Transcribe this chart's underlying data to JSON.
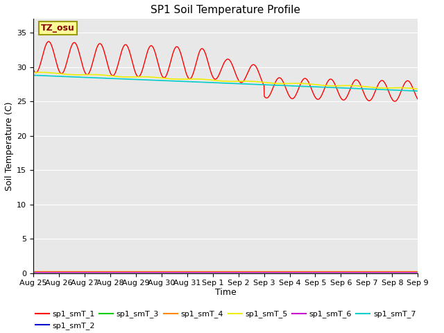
{
  "title": "SP1 Soil Temperature Profile",
  "xlabel": "Time",
  "ylabel": "Soil Temperature (C)",
  "ylim": [
    0,
    37
  ],
  "yticks": [
    0,
    5,
    10,
    15,
    20,
    25,
    30,
    35
  ],
  "tz_label": "TZ_osu",
  "fig_facecolor": "#ffffff",
  "ax_facecolor": "#e8e8e8",
  "series_colors": {
    "sp1_smT_1": "#ff0000",
    "sp1_smT_2": "#0000cc",
    "sp1_smT_3": "#00cc00",
    "sp1_smT_4": "#ff8800",
    "sp1_smT_5": "#eeee00",
    "sp1_smT_6": "#cc00cc",
    "sp1_smT_7": "#00cccc"
  },
  "tick_labels": [
    "Aug 25",
    "Aug 26",
    "Aug 27",
    "Aug 28",
    "Aug 29",
    "Aug 30",
    "Aug 31",
    "Sep 1",
    "Sep 2",
    "Sep 3",
    "Sep 4",
    "Sep 5",
    "Sep 6",
    "Sep 7",
    "Sep 8",
    "Sep 9"
  ],
  "tick_positions": [
    0,
    1,
    2,
    3,
    4,
    5,
    6,
    7,
    8,
    9,
    10,
    11,
    12,
    13,
    14,
    15
  ],
  "legend_labels": [
    "sp1_smT_1",
    "sp1_smT_2",
    "sp1_smT_3",
    "sp1_smT_4",
    "sp1_smT_5",
    "sp1_smT_6",
    "sp1_smT_7"
  ]
}
